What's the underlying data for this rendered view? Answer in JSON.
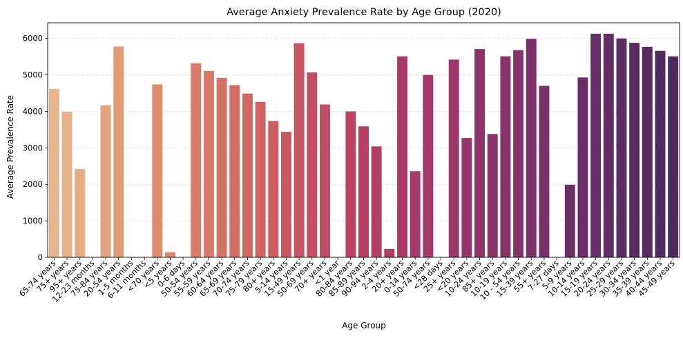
{
  "chart_data": {
    "type": "bar",
    "title": "Average Anxiety Prevalence Rate by Age Group (2020)",
    "xlabel": "Age Group",
    "ylabel": "Average Prevalence Rate",
    "ylim": [
      0,
      6430
    ],
    "yticks": [
      0,
      1000,
      2000,
      3000,
      4000,
      5000,
      6000
    ],
    "grid": "horizontal dashed",
    "palette": "flare",
    "categories": [
      "65-74 years",
      "75+ years",
      "95+ years",
      "12-23 months",
      "75-84 years",
      "20-54 years",
      "1-5 months",
      "6-11 months",
      "<70 years",
      "<5 years",
      "0-6 days",
      "50-54 years",
      "55-59 years",
      "60-64 years",
      "65-69 years",
      "70-74 years",
      "75-79 years",
      "80+ years",
      "5-14 years",
      "15-49 years",
      "50-69 years",
      "70+ years",
      "<1 year",
      "80-84 years",
      "85-89 years",
      "90-94 years",
      "2-4 years",
      "20+ years",
      "0-14 years",
      "50-74 years",
      "<28 days",
      "25+ years",
      "<20 years",
      "10-24 years",
      "85+ years",
      "10-19 years",
      "10 - 54 years",
      "15-39 years",
      "55+ years",
      "7-27 days",
      "5-9 years",
      "10-14 years",
      "15-19 years",
      "20-24 years",
      "25-29 years",
      "30-34 years",
      "35-39 years",
      "40-44 years",
      "45-49 years"
    ],
    "values": [
      4620,
      3990,
      2420,
      0,
      4170,
      5780,
      0,
      0,
      4740,
      140,
      0,
      5320,
      5110,
      4920,
      4720,
      4490,
      4260,
      3740,
      3440,
      5870,
      5070,
      4190,
      0,
      4000,
      3590,
      3040,
      230,
      5510,
      2360,
      5000,
      0,
      5420,
      3270,
      5710,
      3380,
      5510,
      5680,
      5990,
      4700,
      0,
      1990,
      4930,
      6130,
      6130,
      6000,
      5880,
      5770,
      5660,
      5510
    ]
  }
}
